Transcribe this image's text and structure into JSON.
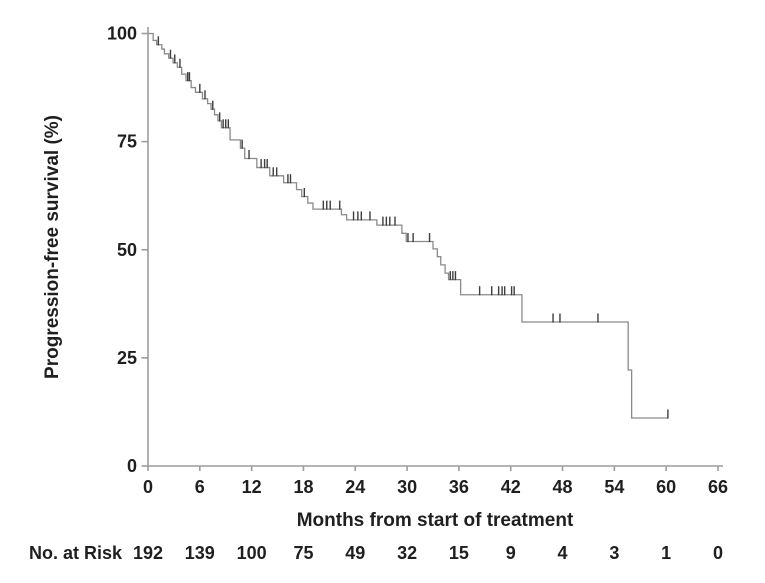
{
  "figure": {
    "background": "#ffffff"
  },
  "chart_data": {
    "type": "line",
    "subtype": "kaplan_meier_step",
    "title": "",
    "xlabel": "Months from start of treatment",
    "ylabel": "Progression-free survival (%)",
    "xlim": [
      0,
      66
    ],
    "ylim": [
      0,
      100
    ],
    "x_ticks": [
      0,
      6,
      12,
      18,
      24,
      30,
      36,
      42,
      48,
      54,
      60,
      66
    ],
    "y_ticks": [
      0,
      25,
      50,
      75,
      100
    ],
    "grid": false,
    "legend": "none",
    "series": [
      {
        "name": "progression-free-survival",
        "steps": [
          [
            0,
            100
          ],
          [
            0.6,
            98.4
          ],
          [
            1.0,
            97.4
          ],
          [
            1.6,
            96.4
          ],
          [
            1.9,
            95.3
          ],
          [
            2.4,
            94.3
          ],
          [
            2.9,
            93.2
          ],
          [
            3.4,
            92.2
          ],
          [
            3.9,
            90.6
          ],
          [
            4.4,
            89.1
          ],
          [
            5.0,
            87.5
          ],
          [
            5.5,
            86.4
          ],
          [
            6.3,
            84.9
          ],
          [
            6.9,
            83.8
          ],
          [
            7.3,
            82.5
          ],
          [
            7.7,
            81.2
          ],
          [
            8.1,
            79.8
          ],
          [
            8.5,
            78.2
          ],
          [
            9.5,
            75.4
          ],
          [
            10.7,
            73.5
          ],
          [
            11.2,
            71.1
          ],
          [
            12.6,
            69.0
          ],
          [
            14.1,
            67.1
          ],
          [
            15.7,
            65.5
          ],
          [
            17.2,
            63.9
          ],
          [
            17.8,
            62.3
          ],
          [
            18.5,
            60.8
          ],
          [
            19.1,
            59.4
          ],
          [
            22.4,
            58.1
          ],
          [
            23.0,
            56.9
          ],
          [
            26.5,
            55.7
          ],
          [
            29.4,
            53.8
          ],
          [
            29.9,
            51.9
          ],
          [
            33.0,
            50.2
          ],
          [
            33.5,
            48.4
          ],
          [
            33.9,
            46.5
          ],
          [
            34.4,
            44.6
          ],
          [
            34.8,
            43.1
          ],
          [
            36.2,
            39.6
          ],
          [
            43.3,
            33.3
          ],
          [
            55.6,
            22.2
          ],
          [
            56.0,
            11.1
          ]
        ],
        "end_x": 60.2,
        "censors": [
          [
            1.2,
            97.4
          ],
          [
            2.6,
            94.3
          ],
          [
            3.1,
            93.2
          ],
          [
            3.7,
            92.2
          ],
          [
            4.6,
            89.1
          ],
          [
            4.8,
            89.1
          ],
          [
            6.0,
            86.4
          ],
          [
            6.6,
            84.9
          ],
          [
            7.5,
            82.5
          ],
          [
            8.3,
            79.8
          ],
          [
            8.7,
            78.2
          ],
          [
            9.0,
            78.2
          ],
          [
            9.3,
            78.2
          ],
          [
            10.9,
            73.5
          ],
          [
            11.7,
            71.1
          ],
          [
            13.1,
            69.0
          ],
          [
            13.5,
            69.0
          ],
          [
            13.8,
            69.0
          ],
          [
            14.5,
            67.1
          ],
          [
            14.9,
            67.1
          ],
          [
            16.2,
            65.5
          ],
          [
            16.5,
            65.5
          ],
          [
            18.1,
            62.3
          ],
          [
            20.3,
            59.4
          ],
          [
            20.7,
            59.4
          ],
          [
            21.1,
            59.4
          ],
          [
            22.2,
            59.4
          ],
          [
            23.8,
            56.9
          ],
          [
            24.3,
            56.9
          ],
          [
            24.7,
            56.9
          ],
          [
            25.7,
            56.9
          ],
          [
            27.2,
            55.7
          ],
          [
            27.6,
            55.7
          ],
          [
            28.0,
            55.7
          ],
          [
            28.6,
            55.7
          ],
          [
            30.1,
            51.9
          ],
          [
            30.7,
            51.9
          ],
          [
            32.6,
            51.9
          ],
          [
            35.0,
            43.1
          ],
          [
            35.3,
            43.1
          ],
          [
            35.6,
            43.1
          ],
          [
            38.4,
            39.6
          ],
          [
            39.8,
            39.6
          ],
          [
            40.6,
            39.6
          ],
          [
            41.0,
            39.6
          ],
          [
            41.3,
            39.6
          ],
          [
            42.1,
            39.6
          ],
          [
            42.4,
            39.6
          ],
          [
            46.9,
            33.3
          ],
          [
            47.7,
            33.3
          ],
          [
            52.1,
            33.3
          ],
          [
            60.2,
            11.1
          ]
        ]
      }
    ],
    "risk_table": {
      "label": "No. at Risk",
      "times": [
        0,
        6,
        12,
        18,
        24,
        30,
        36,
        42,
        48,
        54,
        60,
        66
      ],
      "counts": [
        192,
        139,
        100,
        75,
        49,
        32,
        15,
        9,
        4,
        3,
        1,
        0
      ]
    },
    "colors": {
      "curve": "#8a8a8a",
      "censor": "#3d3d3d",
      "axis": "#9c9c9c",
      "text": "#1f1f1f"
    }
  }
}
